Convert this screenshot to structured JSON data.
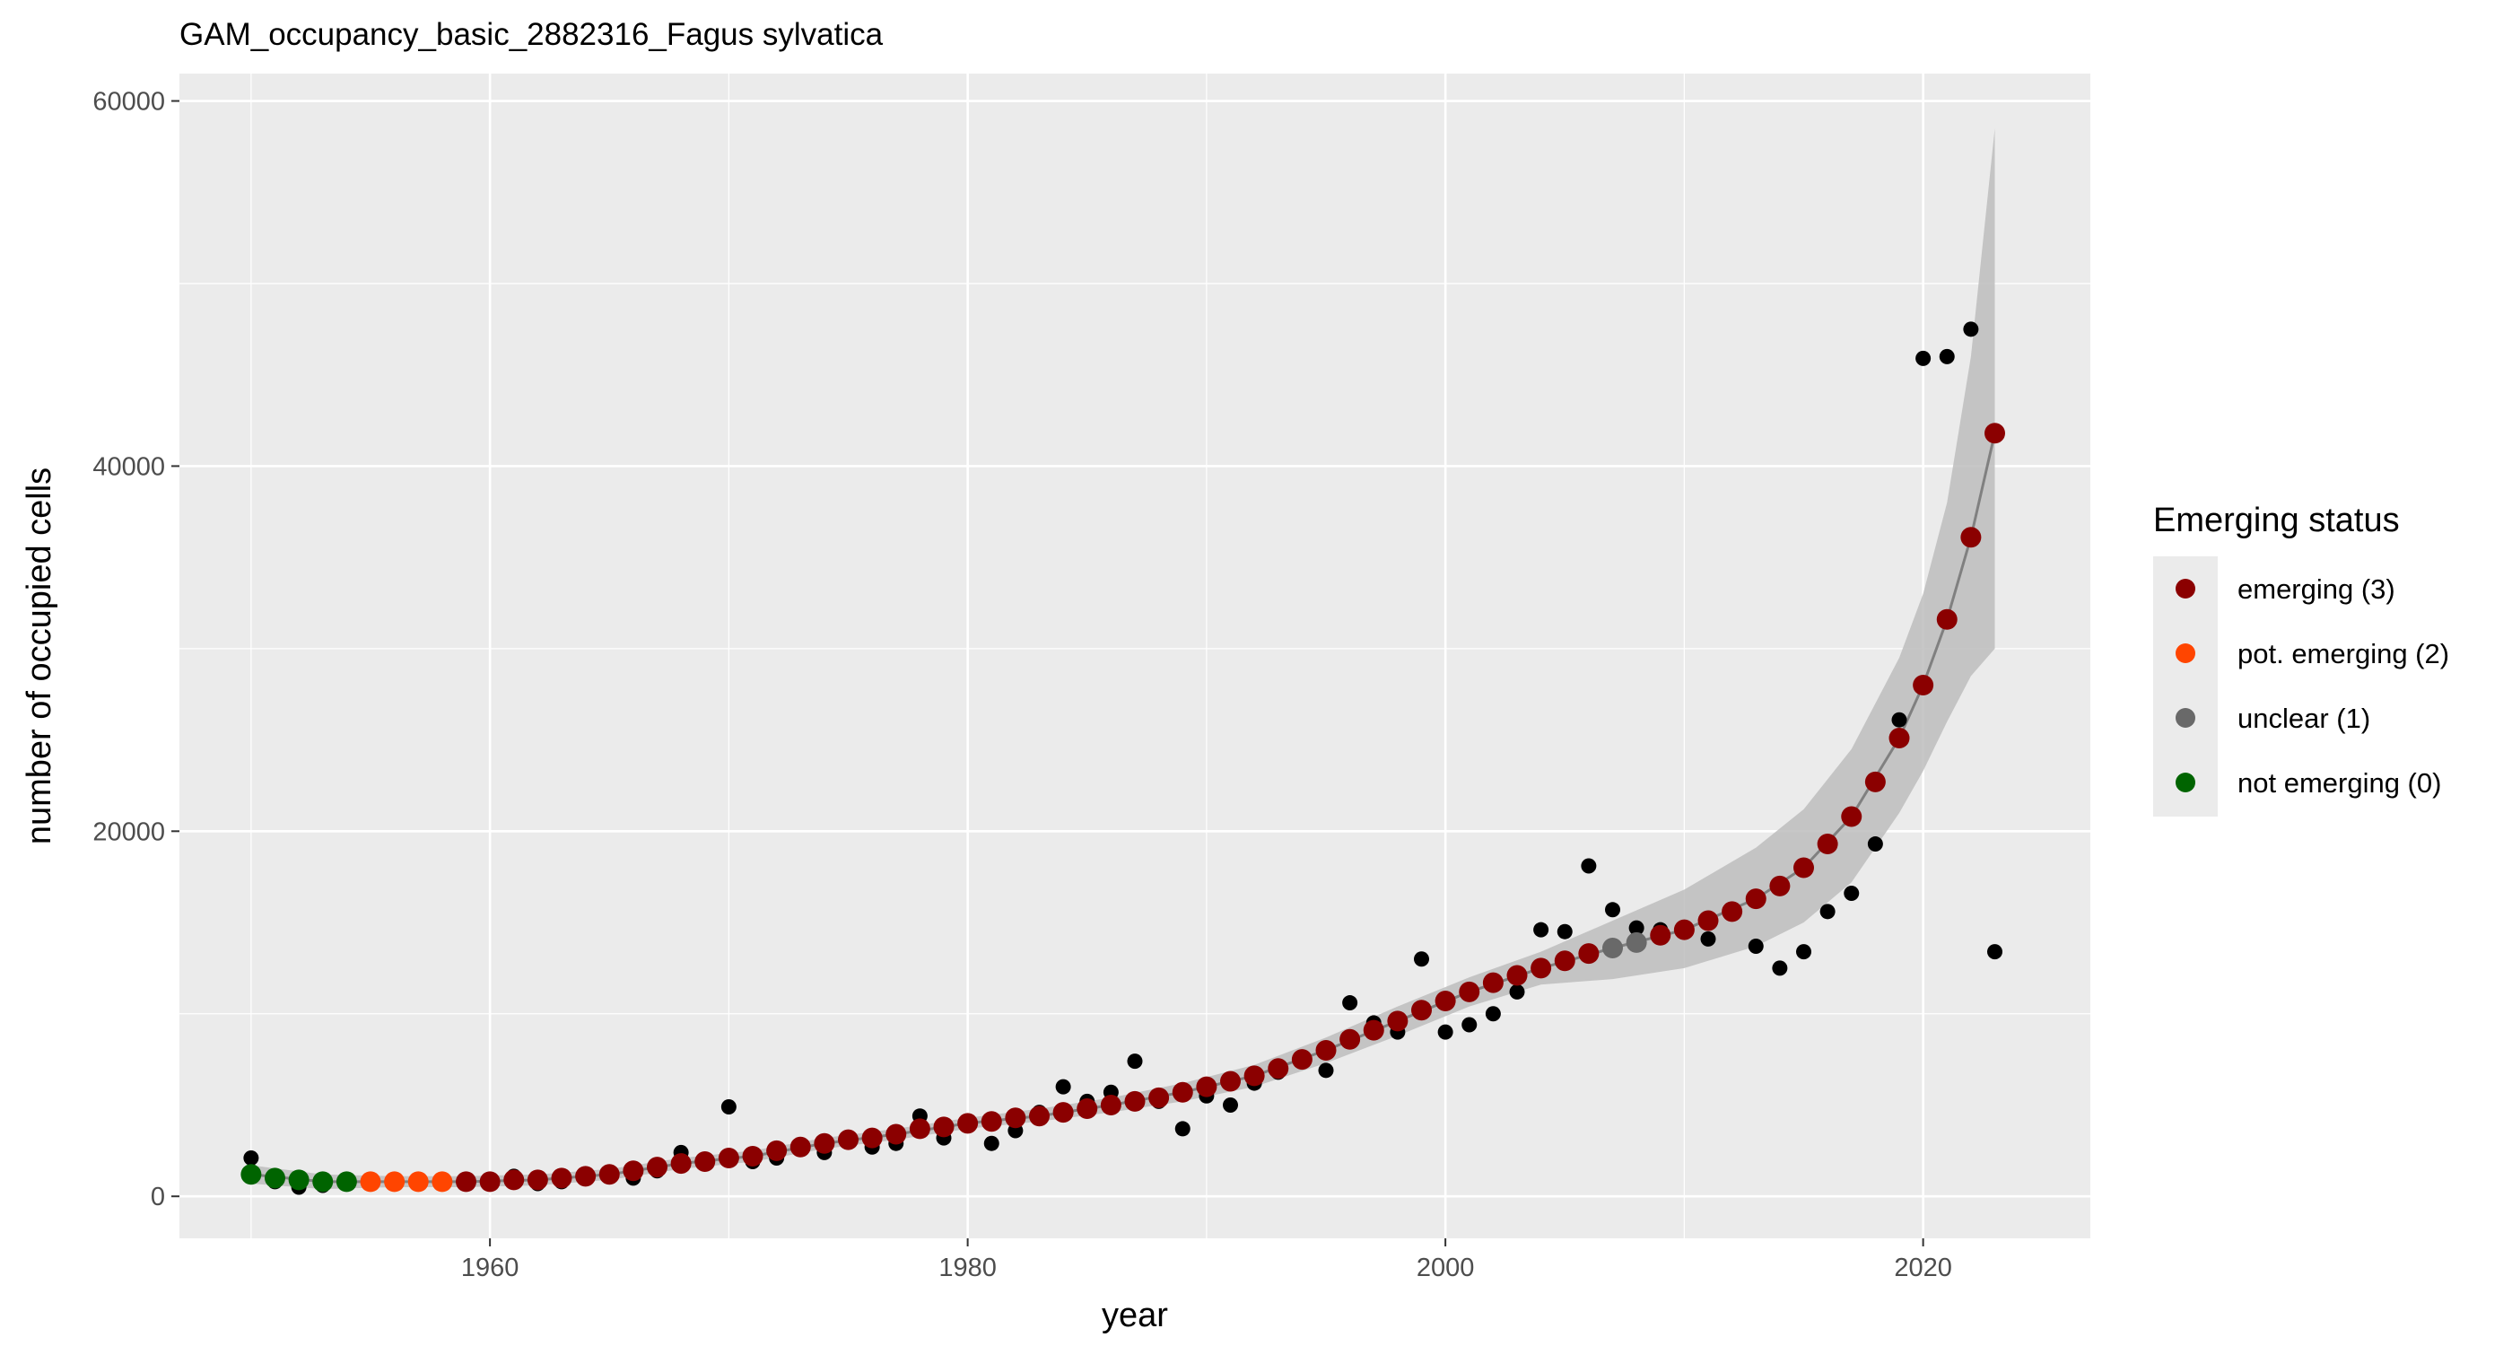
{
  "chart_data": {
    "type": "scatter",
    "title": "GAM_occupancy_basic_2882316_Fagus sylvatica",
    "xlabel": "year",
    "ylabel": "number of occupied cells",
    "xlim": [
      1947,
      2027
    ],
    "ylim": [
      -2300,
      61500
    ],
    "x_ticks": [
      1960,
      1980,
      2000,
      2020
    ],
    "x_tick_labels": [
      "1960",
      "1980",
      "2000",
      "2020"
    ],
    "y_ticks": [
      0,
      20000,
      40000,
      60000
    ],
    "y_tick_labels": [
      "0",
      "20000",
      "40000",
      "60000"
    ],
    "grid": true,
    "legend": {
      "title": "Emerging status",
      "position": "right",
      "entries": [
        {
          "label": "emerging (3)",
          "color": "#8B0000"
        },
        {
          "label": "pot. emerging (2)",
          "color": "#FF4500"
        },
        {
          "label": "unclear (1)",
          "color": "#696969"
        },
        {
          "label": "not emerging (0)",
          "color": "#006400"
        }
      ]
    },
    "colors": {
      "panel_background": "#EBEBEB",
      "grid": "#FFFFFF",
      "ribbon": "#BDBDBD",
      "fit_line": "#808080",
      "observed_points": "#000000"
    },
    "series": [
      {
        "kind": "observed",
        "x": [
          1950,
          1951,
          1952,
          1953,
          1954,
          1955,
          1956,
          1957,
          1958,
          1959,
          1960,
          1961,
          1962,
          1963,
          1964,
          1965,
          1966,
          1967,
          1968,
          1969,
          1970,
          1971,
          1972,
          1973,
          1974,
          1975,
          1976,
          1977,
          1978,
          1979,
          1980,
          1981,
          1982,
          1983,
          1984,
          1985,
          1986,
          1987,
          1988,
          1989,
          1990,
          1991,
          1992,
          1993,
          1994,
          1995,
          1996,
          1997,
          1998,
          1999,
          2000,
          2001,
          2002,
          2003,
          2004,
          2005,
          2006,
          2007,
          2008,
          2009,
          2010,
          2011,
          2012,
          2013,
          2014,
          2015,
          2016,
          2017,
          2018,
          2019,
          2020,
          2021,
          2022,
          2023
        ],
        "y": [
          2100,
          800,
          500,
          600,
          700,
          900,
          800,
          900,
          700,
          900,
          700,
          1100,
          700,
          800,
          1100,
          1300,
          1000,
          1400,
          2400,
          1800,
          4900,
          1900,
          2100,
          2600,
          2400,
          3000,
          2700,
          2900,
          4400,
          3200,
          4000,
          2900,
          3600,
          4600,
          6000,
          5200,
          5700,
          7400,
          5200,
          3700,
          5500,
          5000,
          6200,
          6800,
          7500,
          6900,
          10600,
          9500,
          9000,
          13000,
          9000,
          9400,
          10000,
          11200,
          14600,
          14500,
          18100,
          15700,
          14700,
          14600,
          14700,
          14100,
          15500,
          13700,
          12500,
          13400,
          15600,
          16600,
          19300,
          26100,
          45900,
          46000,
          47500,
          13400
        ]
      },
      {
        "kind": "fitted",
        "x": [
          1950,
          1951,
          1952,
          1953,
          1954,
          1955,
          1956,
          1957,
          1958,
          1959,
          1960,
          1961,
          1962,
          1963,
          1964,
          1965,
          1966,
          1967,
          1968,
          1969,
          1970,
          1971,
          1972,
          1973,
          1974,
          1975,
          1976,
          1977,
          1978,
          1979,
          1980,
          1981,
          1982,
          1983,
          1984,
          1985,
          1986,
          1987,
          1988,
          1989,
          1990,
          1991,
          1992,
          1993,
          1994,
          1995,
          1996,
          1997,
          1998,
          1999,
          2000,
          2001,
          2002,
          2003,
          2004,
          2005,
          2006,
          2007,
          2008,
          2009,
          2010,
          2011,
          2012,
          2013,
          2014,
          2015,
          2016,
          2017,
          2018,
          2019,
          2020,
          2021,
          2022,
          2023
        ],
        "y": [
          1200,
          1000,
          900,
          800,
          800,
          800,
          800,
          800,
          800,
          800,
          800,
          900,
          900,
          1000,
          1100,
          1200,
          1400,
          1600,
          1800,
          1900,
          2100,
          2200,
          2500,
          2700,
          2900,
          3100,
          3200,
          3400,
          3700,
          3800,
          4000,
          4100,
          4300,
          4400,
          4600,
          4800,
          5000,
          5200,
          5400,
          5700,
          6000,
          6300,
          6600,
          7000,
          7500,
          8000,
          8600,
          9100,
          9600,
          10200,
          10700,
          11200,
          11700,
          12100,
          12500,
          12900,
          13300,
          13600,
          13900,
          14300,
          14600,
          15100,
          15600,
          16300,
          17000,
          18000,
          19300,
          20800,
          22700,
          25100,
          28000,
          31600,
          36100,
          41800
        ],
        "status": [
          0,
          0,
          0,
          0,
          0,
          2,
          2,
          2,
          2,
          3,
          3,
          3,
          3,
          3,
          3,
          3,
          3,
          3,
          3,
          3,
          3,
          3,
          3,
          3,
          3,
          3,
          3,
          3,
          3,
          3,
          3,
          3,
          3,
          3,
          3,
          3,
          3,
          3,
          3,
          3,
          3,
          3,
          3,
          3,
          3,
          3,
          3,
          3,
          3,
          3,
          3,
          3,
          3,
          3,
          3,
          3,
          3,
          1,
          1,
          3,
          3,
          3,
          3,
          3,
          3,
          3,
          3,
          3,
          3,
          3,
          3,
          3,
          3,
          3
        ]
      }
    ],
    "fit_line": {
      "x": [
        1950,
        1953,
        1956,
        1959,
        1962,
        1965,
        1968,
        1971,
        1974,
        1977,
        1980,
        1983,
        1986,
        1989,
        1992,
        1995,
        1998,
        2001,
        2004,
        2007,
        2010,
        2013,
        2015,
        2017,
        2019,
        2020,
        2021,
        2022,
        2023
      ],
      "y": [
        1200,
        800,
        800,
        800,
        900,
        1200,
        1800,
        2200,
        2900,
        3400,
        4000,
        4400,
        5000,
        5700,
        6600,
        8000,
        9600,
        11200,
        12500,
        13600,
        14600,
        16300,
        18000,
        20800,
        25100,
        28000,
        31600,
        36100,
        41800
      ]
    },
    "ribbon": {
      "x": [
        1950,
        1953,
        1956,
        1959,
        1962,
        1965,
        1968,
        1971,
        1974,
        1977,
        1980,
        1983,
        1986,
        1989,
        1992,
        1995,
        1998,
        2001,
        2004,
        2007,
        2010,
        2013,
        2015,
        2017,
        2019,
        2020,
        2021,
        2022,
        2023
      ],
      "lower": [
        700,
        400,
        500,
        500,
        600,
        900,
        1500,
        1900,
        2600,
        3100,
        3700,
        4100,
        4600,
        5200,
        6000,
        7300,
        8800,
        10400,
        11600,
        11900,
        12500,
        13700,
        15000,
        17200,
        21000,
        23300,
        26000,
        28500,
        30000
      ],
      "upper": [
        1700,
        1200,
        1100,
        1100,
        1200,
        1500,
        2100,
        2500,
        3200,
        3700,
        4300,
        4800,
        5400,
        6200,
        7200,
        8700,
        10400,
        12000,
        13400,
        15100,
        16800,
        19100,
        21200,
        24500,
        29500,
        33000,
        38000,
        46000,
        58500
      ]
    }
  }
}
